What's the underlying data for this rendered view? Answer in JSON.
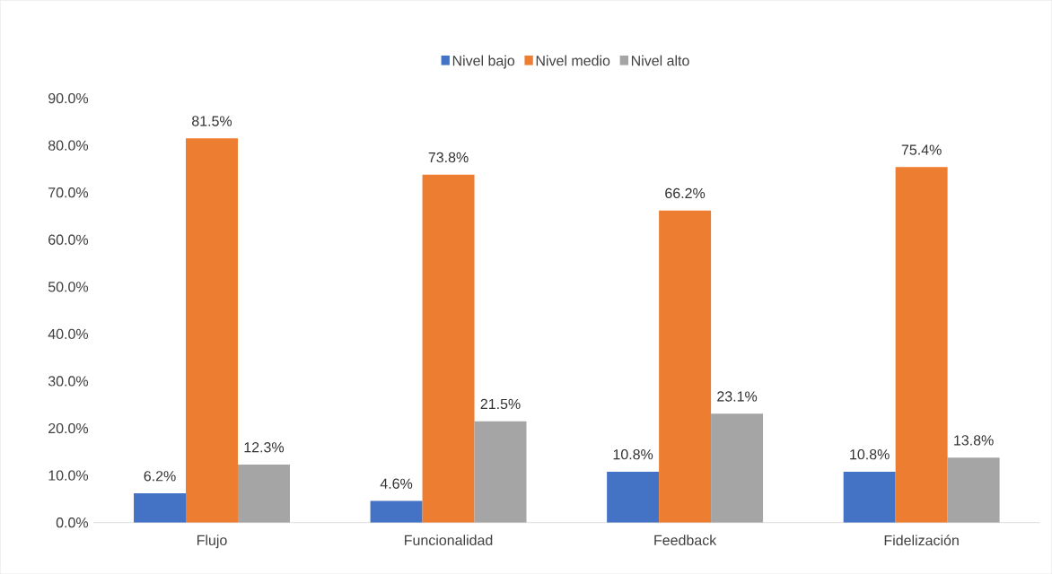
{
  "chart_data": {
    "type": "bar",
    "categories": [
      "Flujo",
      "Funcionalidad",
      "Feedback",
      "Fidelización"
    ],
    "series": [
      {
        "name": "Nivel bajo",
        "color": "#4472c4",
        "values": [
          6.2,
          4.6,
          10.8,
          10.8
        ],
        "value_labels": [
          "6.2%",
          "4.6%",
          "10.8%",
          "10.8%"
        ]
      },
      {
        "name": "Nivel medio",
        "color": "#ed7d31",
        "values": [
          81.5,
          73.8,
          66.2,
          75.4
        ],
        "value_labels": [
          "81.5%",
          "73.8%",
          "66.2%",
          "75.4%"
        ]
      },
      {
        "name": "Nivel alto",
        "color": "#a5a5a5",
        "values": [
          12.3,
          21.5,
          23.1,
          13.8
        ],
        "value_labels": [
          "12.3%",
          "21.5%",
          "23.1%",
          "13.8%"
        ]
      }
    ],
    "ylim": [
      0,
      90
    ],
    "yticks": [
      {
        "value": 0,
        "label": "0.0%"
      },
      {
        "value": 10,
        "label": "10.0%"
      },
      {
        "value": 20,
        "label": "20.0%"
      },
      {
        "value": 30,
        "label": "30.0%"
      },
      {
        "value": 40,
        "label": "40.0%"
      },
      {
        "value": 50,
        "label": "50.0%"
      },
      {
        "value": 60,
        "label": "60.0%"
      },
      {
        "value": 70,
        "label": "70.0%"
      },
      {
        "value": 80,
        "label": "80.0%"
      },
      {
        "value": 90,
        "label": "90.0%"
      }
    ],
    "grid": false,
    "legend": "top"
  }
}
